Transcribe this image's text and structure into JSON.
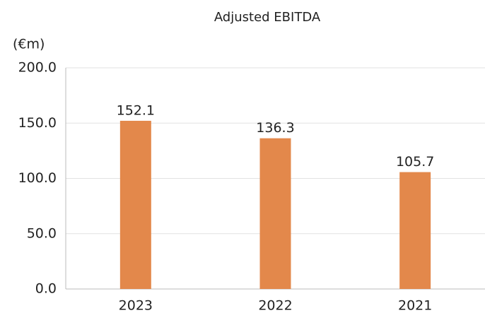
{
  "chart_data": {
    "type": "bar",
    "title": "Adjusted EBITDA",
    "y_label": "(€m)",
    "categories": [
      "2023",
      "2022",
      "2021"
    ],
    "values": [
      152.1,
      136.3,
      105.7
    ],
    "color": "#e3884b",
    "ylim": [
      0,
      200
    ],
    "yticks": [
      {
        "value": 0,
        "label": "0.0"
      },
      {
        "value": 50,
        "label": "50.0"
      },
      {
        "value": 100,
        "label": "100.0"
      },
      {
        "value": 150,
        "label": "150.0"
      },
      {
        "value": 200,
        "label": "200.0"
      }
    ],
    "grid": true
  }
}
